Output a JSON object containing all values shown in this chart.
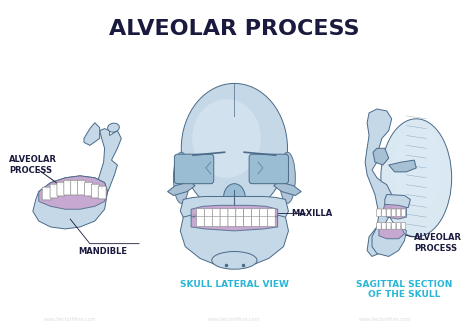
{
  "title": "ALVEOLAR PROCESS",
  "title_color": "#1a1a3e",
  "title_fontsize": 16,
  "background_color": "#ffffff",
  "labels": {
    "alveolar_process_left": "ALVEOLAR\nPROCESS",
    "mandible": "MANDIBLE",
    "maxilla": "MAXILLA",
    "alveolar_process_right": "ALVEOLAR\nPROCESS",
    "skull_lateral_view": "SKULL LATERAL VIEW",
    "sagittal_section": "SAGITTAL SECTION\nOF THE SKULL"
  },
  "label_color": "#1a1a3e",
  "caption_color": "#29b6d6",
  "bone_fill": "#c5d8e8",
  "bone_fill_light": "#dae8f2",
  "bone_fill_dark": "#a8c0d4",
  "bone_stroke": "#4a6a88",
  "alveolar_fill": "#c8a0cc",
  "teeth_fill": "#ffffff",
  "teeth_stroke": "#999999",
  "highlight": "#e8f0f8",
  "shadow": "#8aaccc"
}
